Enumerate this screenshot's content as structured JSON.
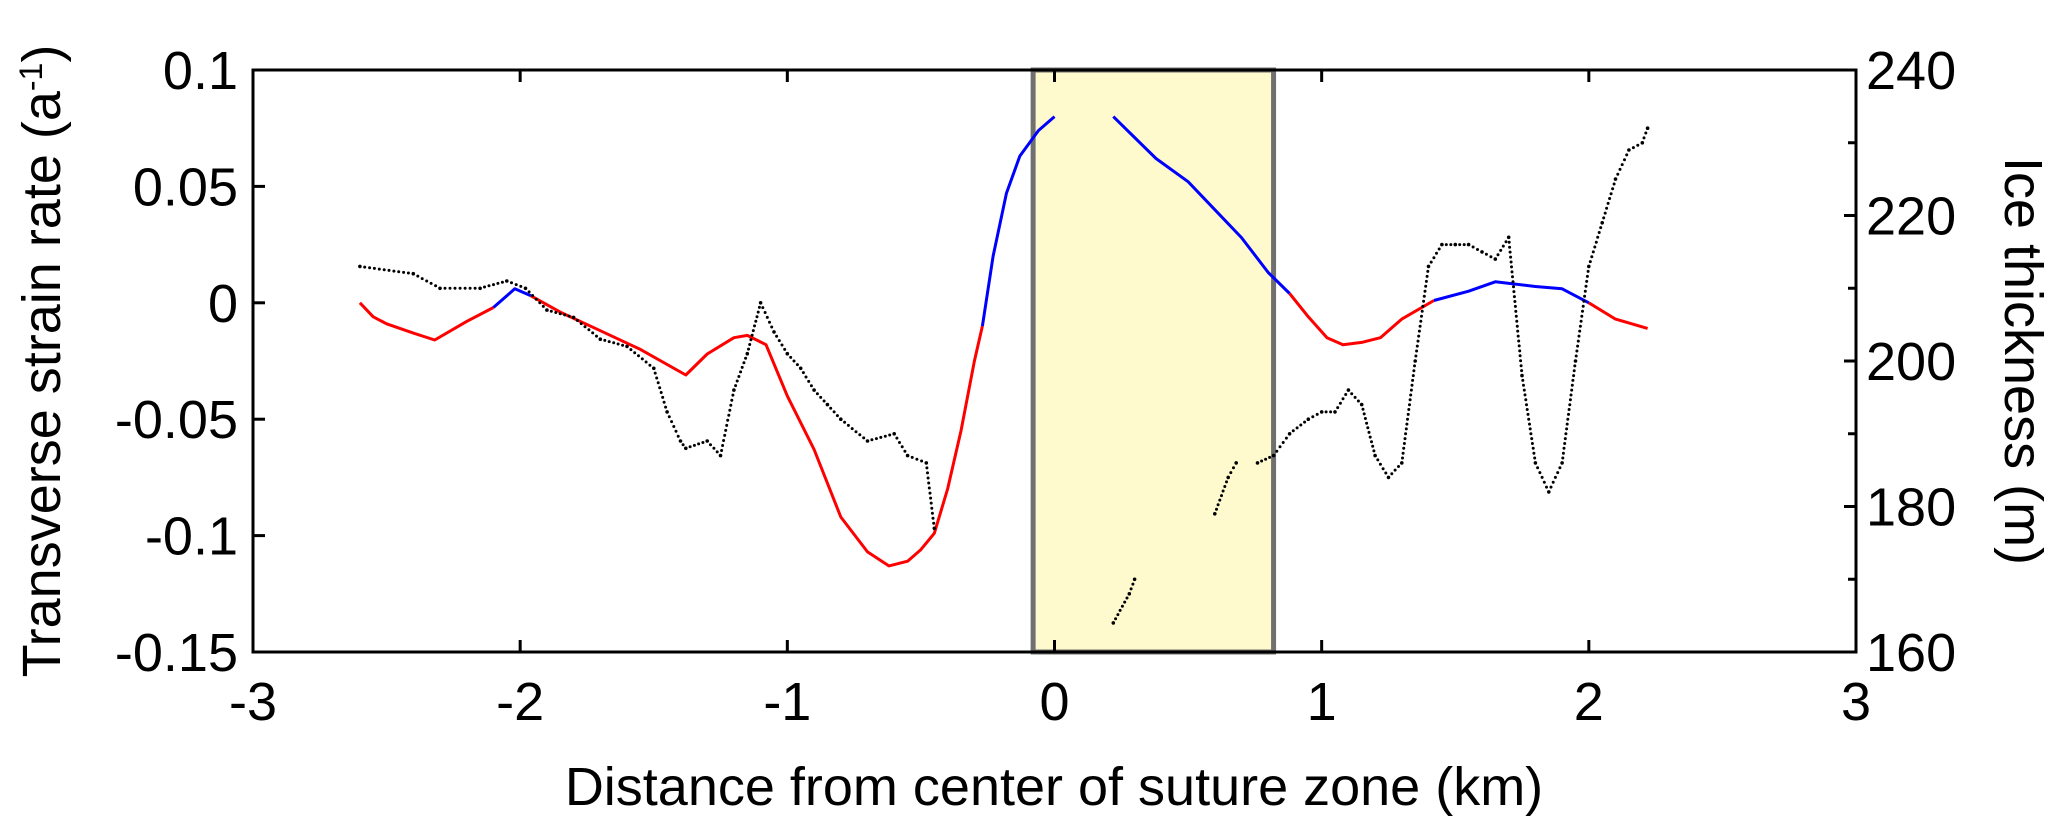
{
  "chart_data": {
    "type": "line",
    "xlabel": "Distance from center of suture zone (km)",
    "ylabel_left": "Transverse strain rate (a",
    "ylabel_left_sup": "-1",
    "ylabel_left_close": ")",
    "ylabel_right": "Ice thickness (m)",
    "xlim": [
      -3,
      3
    ],
    "ylim_left": [
      -0.15,
      0.1
    ],
    "ylim_right": [
      160,
      240
    ],
    "x_ticks": [
      "-3",
      "-2",
      "-1",
      "0",
      "1",
      "2",
      "3"
    ],
    "y_left_ticks": [
      "0.1",
      "0.05",
      "0",
      "-0.05",
      "-0.1",
      "-0.15"
    ],
    "y_right_ticks": [
      "240",
      "220",
      "200",
      "180",
      "160"
    ],
    "grid": false,
    "highlight_region": {
      "x_start": -0.08,
      "x_end": 0.82,
      "fill": "#fffacd",
      "edge": "#707070"
    },
    "series": [
      {
        "axis": "left",
        "style": "line",
        "segments": [
          {
            "color": "#ff0000",
            "points": [
              [
                -2.6,
                0.0
              ],
              [
                -2.55,
                -0.006
              ],
              [
                -2.5,
                -0.009
              ],
              [
                -2.4,
                -0.013
              ],
              [
                -2.32,
                -0.016
              ],
              [
                -2.2,
                -0.008
              ],
              [
                -2.1,
                -0.002
              ]
            ]
          },
          {
            "color": "#0000ff",
            "points": [
              [
                -2.1,
                -0.002
              ],
              [
                -2.02,
                0.006
              ],
              [
                -1.96,
                0.003
              ]
            ]
          },
          {
            "color": "#ff0000",
            "points": [
              [
                -1.96,
                0.003
              ],
              [
                -1.85,
                -0.004
              ],
              [
                -1.7,
                -0.012
              ],
              [
                -1.55,
                -0.02
              ],
              [
                -1.38,
                -0.031
              ],
              [
                -1.3,
                -0.022
              ],
              [
                -1.2,
                -0.015
              ],
              [
                -1.15,
                -0.014
              ],
              [
                -1.08,
                -0.018
              ],
              [
                -1.0,
                -0.04
              ],
              [
                -0.9,
                -0.063
              ],
              [
                -0.8,
                -0.092
              ],
              [
                -0.7,
                -0.107
              ],
              [
                -0.62,
                -0.113
              ],
              [
                -0.55,
                -0.111
              ],
              [
                -0.5,
                -0.106
              ],
              [
                -0.45,
                -0.099
              ],
              [
                -0.4,
                -0.08
              ],
              [
                -0.35,
                -0.055
              ],
              [
                -0.3,
                -0.025
              ],
              [
                -0.27,
                -0.01
              ]
            ]
          },
          {
            "color": "#0000ff",
            "points": [
              [
                -0.27,
                -0.01
              ],
              [
                -0.23,
                0.02
              ],
              [
                -0.18,
                0.047
              ],
              [
                -0.13,
                0.063
              ],
              [
                -0.06,
                0.074
              ],
              [
                0.0,
                0.08
              ]
            ]
          },
          {
            "color": "#0000ff",
            "points": [
              [
                0.22,
                0.08
              ],
              [
                0.3,
                0.071
              ],
              [
                0.38,
                0.062
              ],
              [
                0.5,
                0.052
              ],
              [
                0.6,
                0.04
              ],
              [
                0.7,
                0.028
              ],
              [
                0.8,
                0.013
              ],
              [
                0.88,
                0.004
              ]
            ]
          },
          {
            "color": "#ff0000",
            "points": [
              [
                0.88,
                0.004
              ],
              [
                0.95,
                -0.006
              ],
              [
                1.02,
                -0.015
              ],
              [
                1.08,
                -0.018
              ],
              [
                1.15,
                -0.017
              ],
              [
                1.22,
                -0.015
              ],
              [
                1.3,
                -0.007
              ],
              [
                1.42,
                0.001
              ]
            ]
          },
          {
            "color": "#0000ff",
            "points": [
              [
                1.42,
                0.001
              ],
              [
                1.55,
                0.005
              ],
              [
                1.65,
                0.009
              ],
              [
                1.8,
                0.007
              ],
              [
                1.9,
                0.006
              ],
              [
                2.0,
                0.0
              ]
            ]
          },
          {
            "color": "#ff0000",
            "points": [
              [
                2.0,
                0.0
              ],
              [
                2.1,
                -0.007
              ],
              [
                2.22,
                -0.011
              ]
            ]
          }
        ]
      },
      {
        "axis": "right",
        "style": "dots",
        "color": "#000000",
        "segments": [
          {
            "points": [
              [
                -2.6,
                213
              ],
              [
                -2.4,
                212
              ],
              [
                -2.3,
                210
              ],
              [
                -2.15,
                210
              ],
              [
                -2.05,
                211
              ],
              [
                -1.98,
                210
              ],
              [
                -1.9,
                207
              ],
              [
                -1.8,
                206
              ],
              [
                -1.7,
                203
              ],
              [
                -1.6,
                202
              ],
              [
                -1.5,
                199
              ],
              [
                -1.45,
                193
              ],
              [
                -1.4,
                189
              ],
              [
                -1.38,
                188
              ],
              [
                -1.3,
                189
              ],
              [
                -1.25,
                187
              ],
              [
                -1.2,
                196
              ],
              [
                -1.15,
                201
              ],
              [
                -1.1,
                208
              ],
              [
                -1.05,
                204
              ],
              [
                -1.0,
                201
              ],
              [
                -0.95,
                199
              ],
              [
                -0.9,
                196
              ],
              [
                -0.85,
                194
              ],
              [
                -0.8,
                192
              ],
              [
                -0.7,
                189
              ],
              [
                -0.6,
                190
              ],
              [
                -0.55,
                187
              ],
              [
                -0.48,
                186
              ],
              [
                -0.45,
                177
              ]
            ]
          },
          {
            "points": [
              [
                0.22,
                164
              ],
              [
                0.28,
                168
              ],
              [
                0.3,
                170
              ]
            ]
          },
          {
            "points": [
              [
                0.6,
                179
              ],
              [
                0.65,
                184
              ],
              [
                0.68,
                186
              ]
            ]
          },
          {
            "points": [
              [
                0.76,
                186
              ],
              [
                0.82,
                187
              ],
              [
                0.88,
                190
              ],
              [
                0.95,
                192
              ],
              [
                1.0,
                193
              ],
              [
                1.05,
                193
              ],
              [
                1.1,
                196
              ],
              [
                1.15,
                194
              ],
              [
                1.2,
                187
              ],
              [
                1.25,
                184
              ],
              [
                1.3,
                186
              ],
              [
                1.35,
                200
              ],
              [
                1.4,
                213
              ],
              [
                1.45,
                216
              ],
              [
                1.5,
                216
              ],
              [
                1.55,
                216
              ],
              [
                1.6,
                215
              ],
              [
                1.65,
                214
              ],
              [
                1.7,
                217
              ],
              [
                1.75,
                198
              ],
              [
                1.8,
                186
              ],
              [
                1.85,
                182
              ],
              [
                1.9,
                186
              ],
              [
                1.95,
                200
              ],
              [
                2.0,
                213
              ],
              [
                2.05,
                219
              ],
              [
                2.1,
                225
              ],
              [
                2.15,
                229
              ],
              [
                2.2,
                230
              ],
              [
                2.22,
                232
              ]
            ]
          }
        ]
      }
    ]
  }
}
